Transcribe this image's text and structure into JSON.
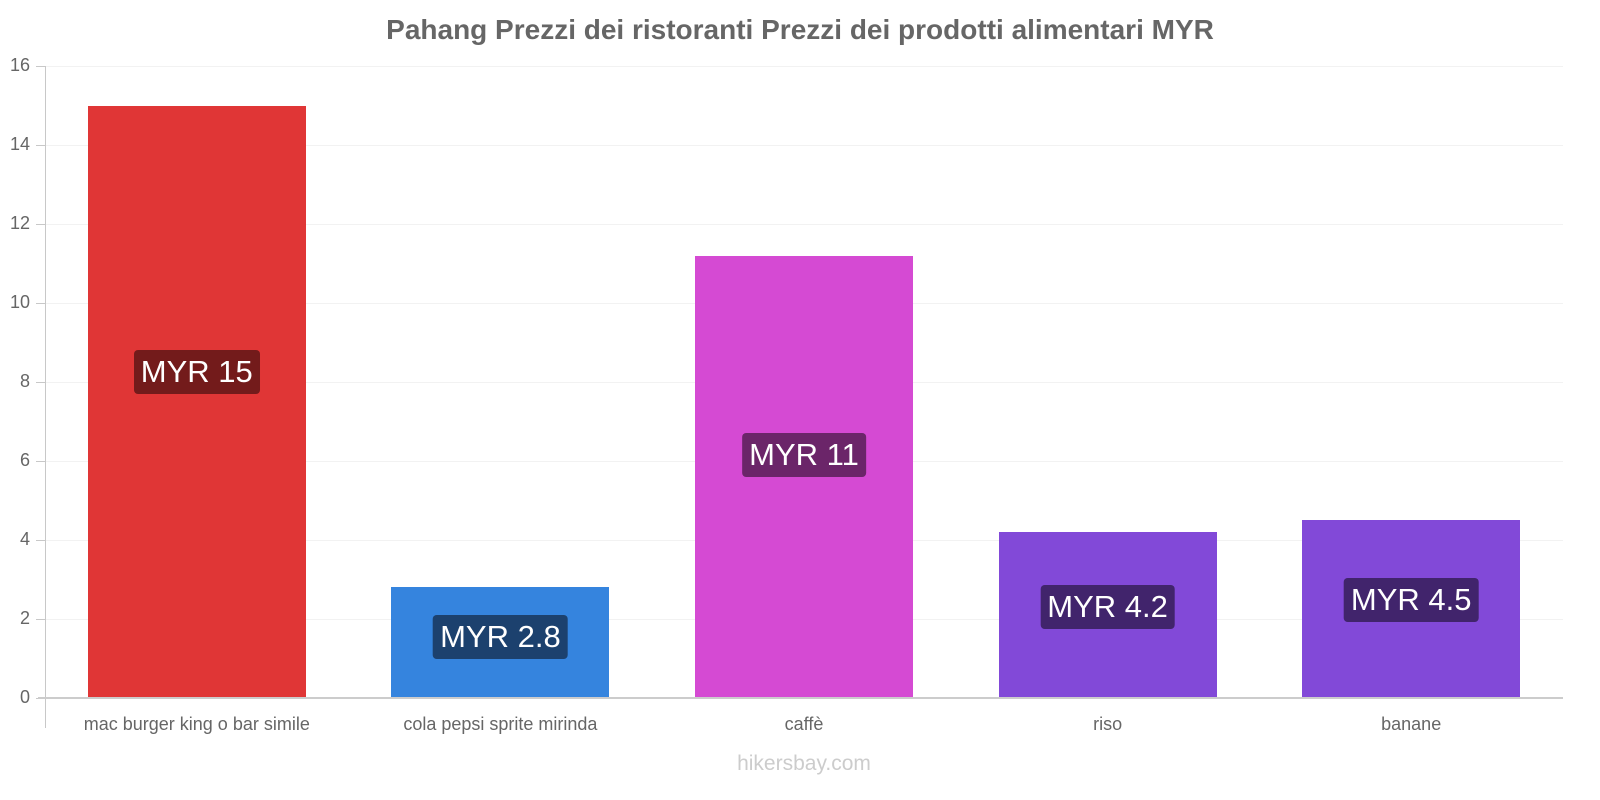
{
  "chart_data": {
    "type": "bar",
    "title": "Pahang Prezzi dei ristoranti Prezzi dei prodotti alimentari MYR",
    "xlabel": "",
    "ylabel": "",
    "ylim": [
      0,
      16
    ],
    "yticks": [
      0,
      2,
      4,
      6,
      8,
      10,
      12,
      14,
      16
    ],
    "grid": true,
    "legend": "none",
    "categories": [
      "mac burger king o bar simile",
      "cola pepsi sprite mirinda",
      "caffè",
      "riso",
      "banane"
    ],
    "values": [
      15,
      2.8,
      11.2,
      4.2,
      4.5
    ],
    "data_labels": [
      "MYR 15",
      "MYR 2.8",
      "MYR 11",
      "MYR 4.2",
      "MYR 4.5"
    ],
    "colors": [
      "#e03636",
      "#3584de",
      "#d54ad3",
      "#8249d8",
      "#8249d8"
    ],
    "label_bg_colors": [
      "#731b1b",
      "#1c416e",
      "#6b2569",
      "#41246c",
      "#41246c"
    ]
  },
  "watermark": "hikersbay.com"
}
